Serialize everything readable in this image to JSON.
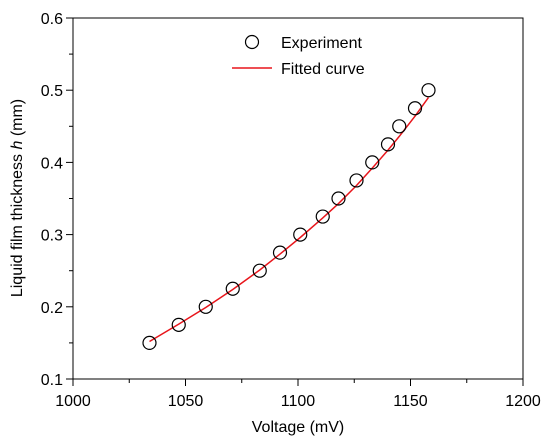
{
  "chart_data": {
    "type": "scatter",
    "title": "",
    "xlabel": "Voltage (mV)",
    "ylabel_prefix": "Liquid film thickness ",
    "ylabel_var": "h",
    "ylabel_suffix": " (mm)",
    "xlim": [
      1000,
      1200
    ],
    "ylim": [
      0.1,
      0.6
    ],
    "xticks": [
      1000,
      1050,
      1100,
      1150,
      1200
    ],
    "yticks": [
      0.1,
      0.2,
      0.3,
      0.4,
      0.5,
      0.6
    ],
    "xtick_labels": [
      "1000",
      "1050",
      "1100",
      "1150",
      "1200"
    ],
    "ytick_labels": [
      "0.1",
      "0.2",
      "0.3",
      "0.4",
      "0.5",
      "0.6"
    ],
    "grid": false,
    "legend_position": "top-center",
    "series": [
      {
        "name": "Experiment",
        "kind": "scatter",
        "marker": "open-circle",
        "color": "#000000",
        "x": [
          1034,
          1047,
          1059,
          1071,
          1083,
          1092,
          1101,
          1111,
          1118,
          1126,
          1133,
          1140,
          1145,
          1152,
          1158
        ],
        "y": [
          0.15,
          0.175,
          0.2,
          0.225,
          0.25,
          0.275,
          0.3,
          0.325,
          0.35,
          0.375,
          0.4,
          0.425,
          0.45,
          0.475,
          0.5
        ]
      },
      {
        "name": "Fitted curve",
        "kind": "line",
        "color": "#e8151b",
        "x": [
          1034,
          1047,
          1059,
          1071,
          1083,
          1092,
          1101,
          1111,
          1118,
          1126,
          1133,
          1140,
          1145,
          1152,
          1158
        ],
        "y": [
          0.152,
          0.176,
          0.199,
          0.224,
          0.251,
          0.273,
          0.296,
          0.323,
          0.343,
          0.368,
          0.392,
          0.417,
          0.436,
          0.464,
          0.49
        ]
      }
    ]
  }
}
